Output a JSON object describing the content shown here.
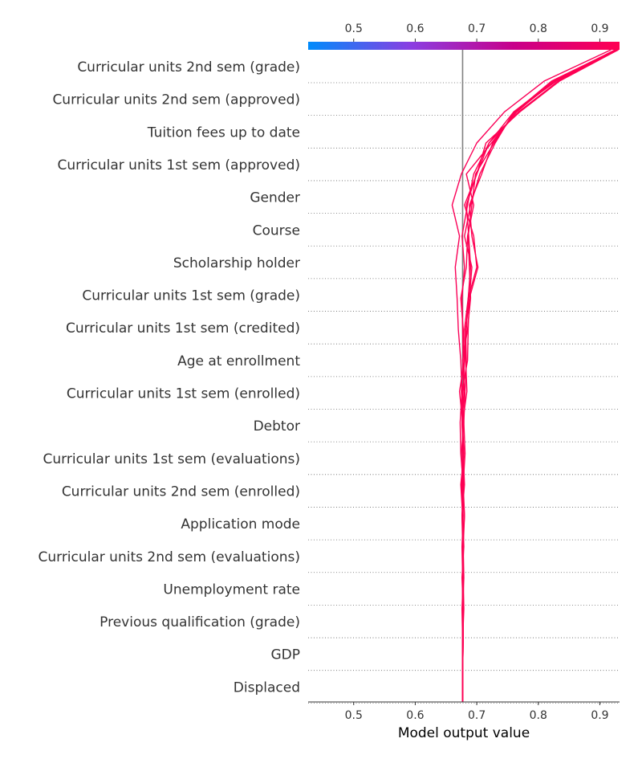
{
  "chart_data": {
    "type": "line",
    "subtype": "shap-decision-plot",
    "xlabel": "Model output value",
    "xlim": [
      0.426,
      0.932
    ],
    "xticks": [
      0.5,
      0.6,
      0.7,
      0.8,
      0.9
    ],
    "tick_labels": [
      "0.5",
      "0.6",
      "0.7",
      "0.8",
      "0.9"
    ],
    "base_value": 0.677,
    "colorbar": {
      "position": "top",
      "range": [
        0.426,
        0.932
      ],
      "colors": [
        "#008bfb",
        "#8a3ee2",
        "#c8008a",
        "#ff0052"
      ]
    },
    "grid": "dotted horizontal per feature",
    "features": [
      "Curricular units 2nd sem (grade)",
      "Curricular units 2nd sem (approved)",
      "Tuition fees up to date",
      "Curricular units 1st sem (approved)",
      "Gender",
      "Course",
      "Scholarship holder",
      "Curricular units 1st sem (grade)",
      "Curricular units 1st sem (credited)",
      "Age at enrollment",
      "Curricular units 1st sem (enrolled)",
      "Debtor",
      "Curricular units 1st sem (evaluations)",
      "Curricular units 2nd sem (enrolled)",
      "Application mode",
      "Curricular units 2nd sem (evaluations)",
      "Unemployment rate",
      "Previous qualification (grade)",
      "GDP",
      "Displaced"
    ],
    "series": [
      {
        "values": [
          0.677,
          0.677,
          0.678,
          0.678,
          0.676,
          0.679,
          0.677,
          0.674,
          0.679,
          0.677,
          0.672,
          0.68,
          0.678,
          0.674,
          0.683,
          0.685,
          0.695,
          0.683,
          0.724,
          0.765,
          0.825,
          0.925
        ]
      },
      {
        "values": [
          0.677,
          0.677,
          0.677,
          0.679,
          0.678,
          0.677,
          0.68,
          0.677,
          0.675,
          0.679,
          0.681,
          0.683,
          0.682,
          0.688,
          0.692,
          0.68,
          0.69,
          0.705,
          0.73,
          0.76,
          0.83,
          0.928
        ]
      },
      {
        "values": [
          0.677,
          0.677,
          0.678,
          0.677,
          0.679,
          0.678,
          0.676,
          0.68,
          0.678,
          0.677,
          0.684,
          0.682,
          0.68,
          0.686,
          0.7,
          0.695,
          0.68,
          0.7,
          0.715,
          0.77,
          0.835,
          0.93
        ]
      },
      {
        "values": [
          0.677,
          0.677,
          0.677,
          0.678,
          0.677,
          0.676,
          0.678,
          0.676,
          0.679,
          0.676,
          0.68,
          0.677,
          0.685,
          0.69,
          0.688,
          0.686,
          0.692,
          0.698,
          0.728,
          0.762,
          0.822,
          0.926
        ]
      },
      {
        "values": [
          0.677,
          0.677,
          0.677,
          0.677,
          0.678,
          0.677,
          0.676,
          0.678,
          0.674,
          0.673,
          0.676,
          0.674,
          0.67,
          0.668,
          0.665,
          0.672,
          0.66,
          0.675,
          0.7,
          0.745,
          0.81,
          0.918
        ]
      },
      {
        "values": [
          0.677,
          0.677,
          0.677,
          0.676,
          0.678,
          0.678,
          0.677,
          0.675,
          0.678,
          0.676,
          0.678,
          0.68,
          0.683,
          0.686,
          0.69,
          0.687,
          0.683,
          0.7,
          0.72,
          0.768,
          0.833,
          0.925
        ]
      },
      {
        "values": [
          0.677,
          0.677,
          0.678,
          0.678,
          0.677,
          0.678,
          0.68,
          0.678,
          0.681,
          0.679,
          0.676,
          0.685,
          0.686,
          0.688,
          0.702,
          0.692,
          0.688,
          0.708,
          0.726,
          0.763,
          0.828,
          0.93
        ]
      },
      {
        "values": [
          0.677,
          0.677,
          0.677,
          0.677,
          0.677,
          0.678,
          0.677,
          0.679,
          0.677,
          0.678,
          0.675,
          0.678,
          0.677,
          0.676,
          0.68,
          0.676,
          0.685,
          0.695,
          0.72,
          0.76,
          0.825,
          0.929
        ]
      }
    ]
  }
}
